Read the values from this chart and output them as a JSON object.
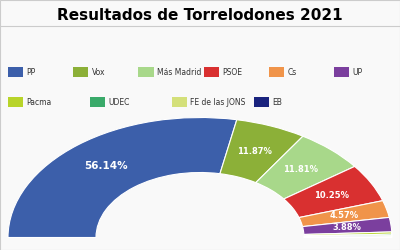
{
  "title": "Resultados de Torrelodones 2021",
  "parties": [
    "PP",
    "Vox",
    "Más Madrid",
    "PSOE",
    "Cs",
    "UP",
    "Pacma",
    "UDEC",
    "FE de las JONS",
    "EB"
  ],
  "values": [
    56.14,
    11.87,
    11.81,
    10.25,
    4.57,
    3.88,
    0.6,
    0.4,
    0.25,
    0.23
  ],
  "colors": [
    "#3c5faa",
    "#8cb038",
    "#a8d88a",
    "#d93030",
    "#f0944a",
    "#7b3f9e",
    "#b8d42a",
    "#3aaa6a",
    "#d4e07a",
    "#1a237e"
  ],
  "legend_row1": [
    [
      "PP",
      "#3c5faa"
    ],
    [
      "Vox",
      "#8cb038"
    ],
    [
      "Más Madrid",
      "#a8d88a"
    ],
    [
      "PSOE",
      "#d93030"
    ],
    [
      "Cs",
      "#f0944a"
    ],
    [
      "UP",
      "#7b3f9e"
    ]
  ],
  "legend_row2": [
    [
      "Pacma",
      "#b8d42a"
    ],
    [
      "UDEC",
      "#3aaa6a"
    ],
    [
      "FE de las JONS",
      "#d4e07a"
    ],
    [
      "EB",
      "#1a237e"
    ]
  ],
  "labels": [
    "56.14%",
    "11.87%",
    "11.81%",
    "10.25%",
    "4.57%",
    "3.88%",
    "",
    "",
    "",
    ""
  ],
  "bg_color": "#f9f9f9",
  "title_fontsize": 11
}
